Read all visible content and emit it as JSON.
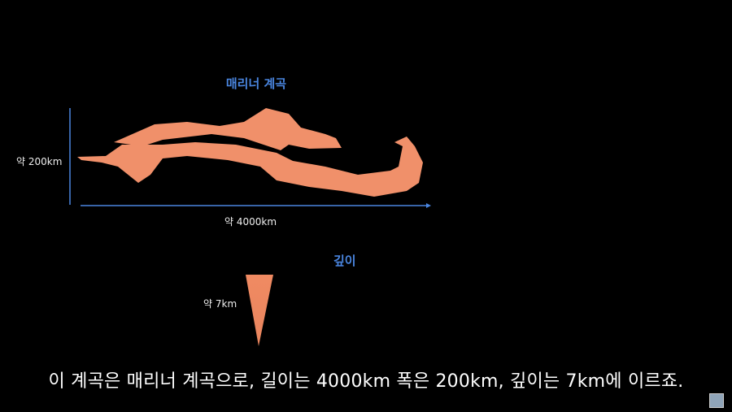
{
  "diagram": {
    "title": "매리너 계곡",
    "width_label": "약 200km",
    "length_label": "약 4000km",
    "depth_title": "깊이",
    "depth_label": "약 7km",
    "colors": {
      "canyon": "#f0906a",
      "axis": "#4a86e0",
      "label_blue": "#4a86e0"
    }
  },
  "subtitle": "이 계곡은 매리너 계곡으로, 길이는 4000km 폭은 200km, 깊이는 7km에 이르죠.",
  "watermark": {
    "icon": "channel-logo-icon"
  }
}
